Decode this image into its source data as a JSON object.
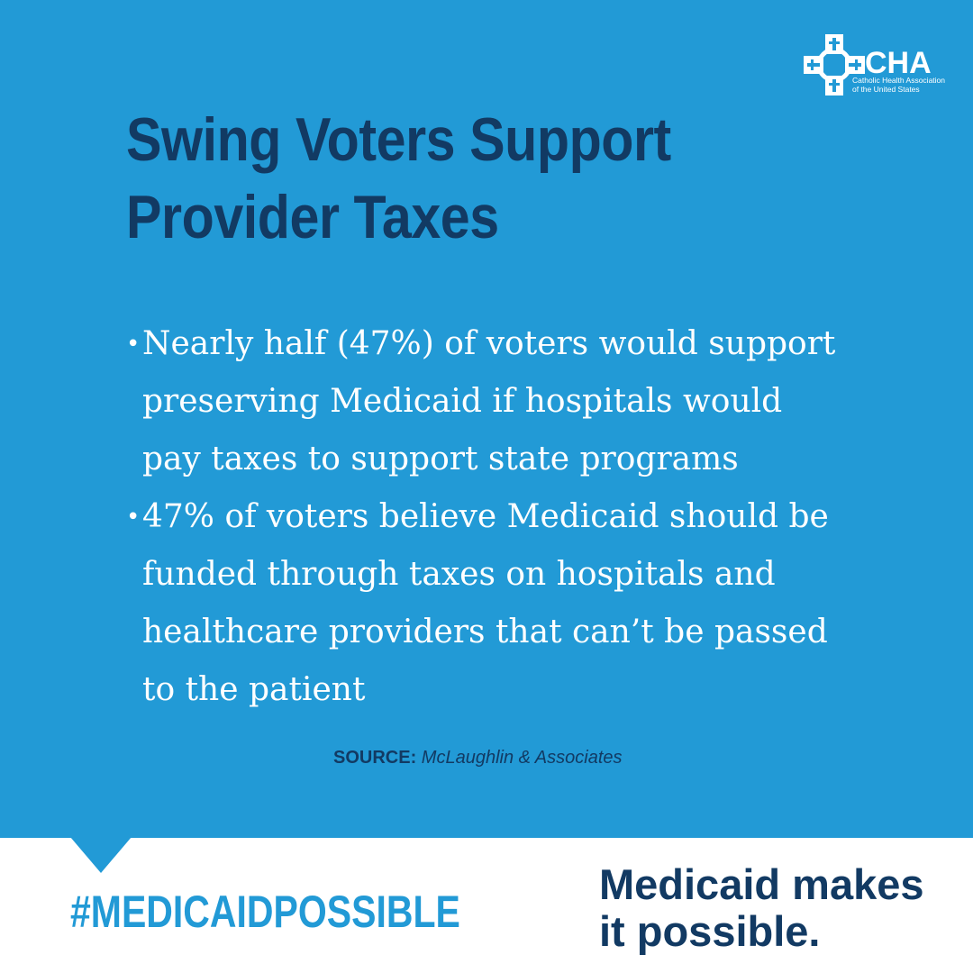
{
  "logo": {
    "mark": "CHA",
    "org_line1": "Catholic Health Association",
    "org_line2": "of the United States",
    "icon": "cross-circle-logo-icon"
  },
  "title": {
    "line1": "Swing Voters Support",
    "line2": "Provider Taxes"
  },
  "bullets": [
    {
      "marker": "•",
      "lines": [
        "Nearly half (47%) of voters would support",
        "preserving Medicaid if hospitals would",
        "pay taxes to support state programs"
      ]
    },
    {
      "marker": "•",
      "lines": [
        "47% of voters believe Medicaid should be",
        "funded through taxes on hospitals and",
        "healthcare providers that can’t be passed",
        "to the patient"
      ]
    }
  ],
  "source": {
    "label": "SOURCE:",
    "name": "McLaughlin & Associates"
  },
  "footer": {
    "hashtag": "#MEDICAIDPOSSIBLE",
    "tagline_line1": "Medicaid makes",
    "tagline_line2": "it possible."
  },
  "colors": {
    "panel_blue": "#229ad6",
    "navy": "#123a63",
    "white": "#ffffff"
  }
}
